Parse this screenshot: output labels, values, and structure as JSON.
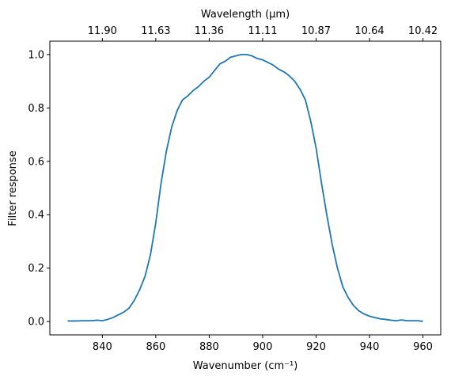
{
  "chart_data": {
    "type": "line",
    "xlabel": "Wavenumber (cm⁻¹)",
    "ylabel": "Filter response",
    "x2label": "Wavelength (μm)",
    "color": "#1f77b4",
    "x": [
      827,
      830,
      833,
      836,
      838,
      840,
      842,
      844,
      846,
      848,
      850,
      852,
      854,
      856,
      858,
      860,
      862,
      864,
      866,
      868,
      870,
      872,
      874,
      876,
      878,
      880,
      882,
      884,
      886,
      888,
      890,
      892,
      894,
      896,
      898,
      900,
      902,
      904,
      906,
      908,
      910,
      912,
      914,
      916,
      918,
      920,
      922,
      924,
      926,
      928,
      930,
      932,
      934,
      936,
      938,
      940,
      942,
      944,
      946,
      948,
      950,
      952,
      954,
      956,
      958,
      960
    ],
    "values": [
      0.002,
      0.002,
      0.003,
      0.003,
      0.005,
      0.003,
      0.008,
      0.015,
      0.025,
      0.035,
      0.05,
      0.08,
      0.12,
      0.17,
      0.25,
      0.37,
      0.52,
      0.64,
      0.73,
      0.79,
      0.83,
      0.845,
      0.865,
      0.88,
      0.9,
      0.915,
      0.94,
      0.965,
      0.975,
      0.99,
      0.995,
      1.0,
      1.0,
      0.995,
      0.985,
      0.98,
      0.97,
      0.96,
      0.945,
      0.935,
      0.92,
      0.9,
      0.87,
      0.83,
      0.75,
      0.65,
      0.52,
      0.4,
      0.29,
      0.2,
      0.13,
      0.09,
      0.06,
      0.04,
      0.028,
      0.02,
      0.015,
      0.01,
      0.008,
      0.005,
      0.003,
      0.006,
      0.003,
      0.003,
      0.003,
      0.001
    ],
    "xlim": [
      820.35,
      966.65
    ],
    "ylim": [
      -0.05,
      1.05
    ],
    "xticks": [
      840,
      860,
      880,
      900,
      920,
      940,
      960
    ],
    "yticks": [
      {
        "value": 0,
        "label": "0.0"
      },
      {
        "value": 0.2,
        "label": "0.2"
      },
      {
        "value": 0.4,
        "label": "0.4"
      },
      {
        "value": 0.6,
        "label": "0.6"
      },
      {
        "value": 0.8,
        "label": "0.8"
      },
      {
        "value": 1,
        "label": "1.0"
      }
    ],
    "x2ticks": [
      {
        "value": 840,
        "label": "11.90"
      },
      {
        "value": 860,
        "label": "11.63"
      },
      {
        "value": 880,
        "label": "11.36"
      },
      {
        "value": 900,
        "label": "11.11"
      },
      {
        "value": 920,
        "label": "10.87"
      },
      {
        "value": 940,
        "label": "10.64"
      },
      {
        "value": 960,
        "label": "10.42"
      }
    ],
    "grid": false
  }
}
